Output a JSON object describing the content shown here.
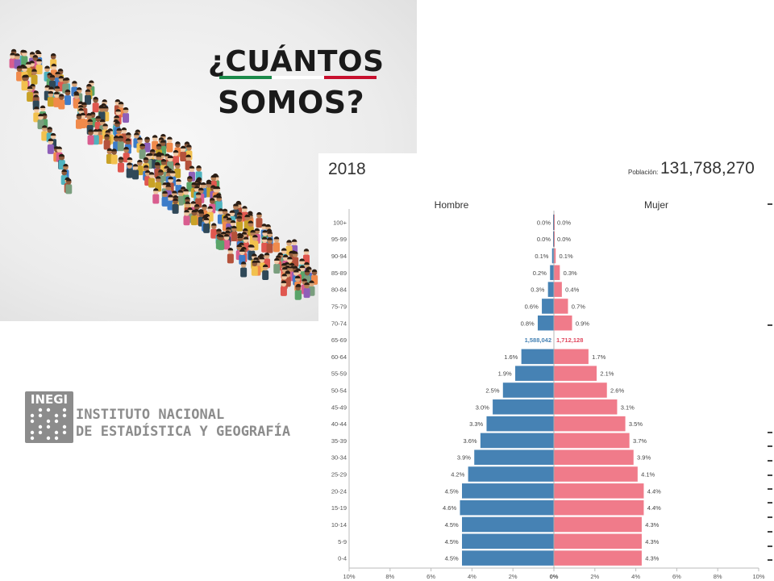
{
  "poster": {
    "title_line1": "¿CUÁNTOS",
    "title_line2": "SOMOS?",
    "flag_colors": [
      "#1b8a4a",
      "#ffffff",
      "#c8102e"
    ]
  },
  "logo": {
    "acronym": "INEGI",
    "name_line1": "INSTITUTO NACIONAL",
    "name_line2": "DE ESTADÍSTICA Y GEOGRAFÍA"
  },
  "chart_header": {
    "year": "2018",
    "population_label": "Población:",
    "population_value": "131,788,270"
  },
  "chart_data": {
    "type": "bar",
    "orientation": "horizontal-pyramid",
    "title": "",
    "categories": [
      "0-4",
      "5-9",
      "10-14",
      "15-19",
      "20-24",
      "25-29",
      "30-34",
      "35-39",
      "40-44",
      "45-49",
      "50-54",
      "55-59",
      "60-64",
      "65-69",
      "70-74",
      "75-79",
      "80-84",
      "85-89",
      "90-94",
      "95-99",
      "100+"
    ],
    "series": [
      {
        "name": "Hombre",
        "color": "#4682b4",
        "values": [
          4.5,
          4.5,
          4.5,
          4.6,
          4.5,
          4.2,
          3.9,
          3.6,
          3.3,
          3.0,
          2.5,
          1.9,
          1.6,
          null,
          0.8,
          0.6,
          0.3,
          0.2,
          0.1,
          0.0,
          0.0
        ],
        "labels": [
          "4.5%",
          "4.5%",
          "4.5%",
          "4.6%",
          "4.5%",
          "4.2%",
          "3.9%",
          "3.6%",
          "3.3%",
          "3.0%",
          "2.5%",
          "1.9%",
          "1.6%",
          "1,588,042",
          "0.8%",
          "0.6%",
          "0.3%",
          "0.2%",
          "0.1%",
          "0.0%",
          "0.0%"
        ]
      },
      {
        "name": "Mujer",
        "color": "#f07b8a",
        "values": [
          4.3,
          4.3,
          4.3,
          4.4,
          4.4,
          4.1,
          3.9,
          3.7,
          3.5,
          3.1,
          2.6,
          2.1,
          1.7,
          null,
          0.9,
          0.7,
          0.4,
          0.3,
          0.1,
          0.0,
          0.0
        ],
        "labels": [
          "4.3%",
          "4.3%",
          "4.3%",
          "4.4%",
          "4.4%",
          "4.1%",
          "3.9%",
          "3.7%",
          "3.5%",
          "3.1%",
          "2.6%",
          "2.1%",
          "1.7%",
          "1,712,128",
          "0.9%",
          "0.7%",
          "0.4%",
          "0.3%",
          "0.1%",
          "0.0%",
          "0.0%"
        ]
      }
    ],
    "xticks": [
      "10%",
      "8%",
      "6%",
      "4%",
      "2%",
      "0%",
      "2%",
      "4%",
      "6%",
      "8%",
      "10%"
    ],
    "xlim": [
      -10,
      10
    ],
    "highlighted_category": "65-69",
    "grid": false
  }
}
